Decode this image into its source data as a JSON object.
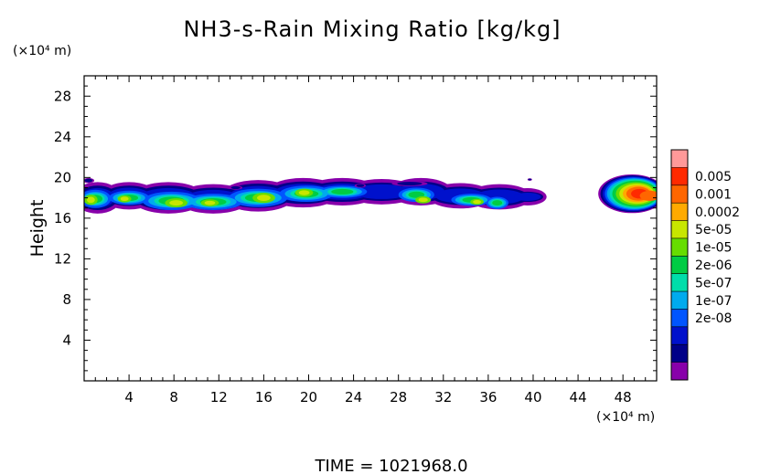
{
  "chart_data": {
    "type": "contour",
    "title": "NH3-s-Rain Mixing Ratio [kg/kg]",
    "ylabel": "Height",
    "xlabel": "",
    "x_unit_label": "(×10⁴ m)",
    "y_unit_label": "(×10⁴ m)",
    "xlim": [
      0,
      51
    ],
    "ylim": [
      0,
      30
    ],
    "x_ticks": [
      4,
      8,
      12,
      16,
      20,
      24,
      28,
      32,
      36,
      40,
      44,
      48
    ],
    "y_ticks": [
      4,
      8,
      12,
      16,
      20,
      24,
      28
    ],
    "x_tick_labels": [
      "4",
      "8",
      "12",
      "16",
      "20",
      "24",
      "28",
      "32",
      "36",
      "40",
      "44",
      "48"
    ],
    "y_tick_labels": [
      "4",
      "8",
      "12",
      "16",
      "20",
      "24",
      "28"
    ],
    "colorbar": {
      "levels": [
        "0.005",
        "0.001",
        "0.0002",
        "5e-05",
        "1e-05",
        "2e-06",
        "5e-07",
        "1e-07",
        "2e-08"
      ],
      "colors": [
        "#ff9999",
        "#ff2a00",
        "#ff6600",
        "#ffaa00",
        "#c8e600",
        "#66dd00",
        "#00cc44",
        "#00ddaa",
        "#00aaee",
        "#0055ff",
        "#0011cc",
        "#000088",
        "#8800aa"
      ]
    },
    "regions": [
      {
        "name": "main cloud band",
        "x_range": [
          0,
          41
        ],
        "y_range": [
          16.5,
          20
        ],
        "peak_level": "1e-05"
      },
      {
        "name": "right cloud band",
        "x_range": [
          45.5,
          51
        ],
        "y_range": [
          16.5,
          20.5
        ],
        "peak_level": "0.001"
      }
    ],
    "footer": "TIME = 1021968.0"
  }
}
